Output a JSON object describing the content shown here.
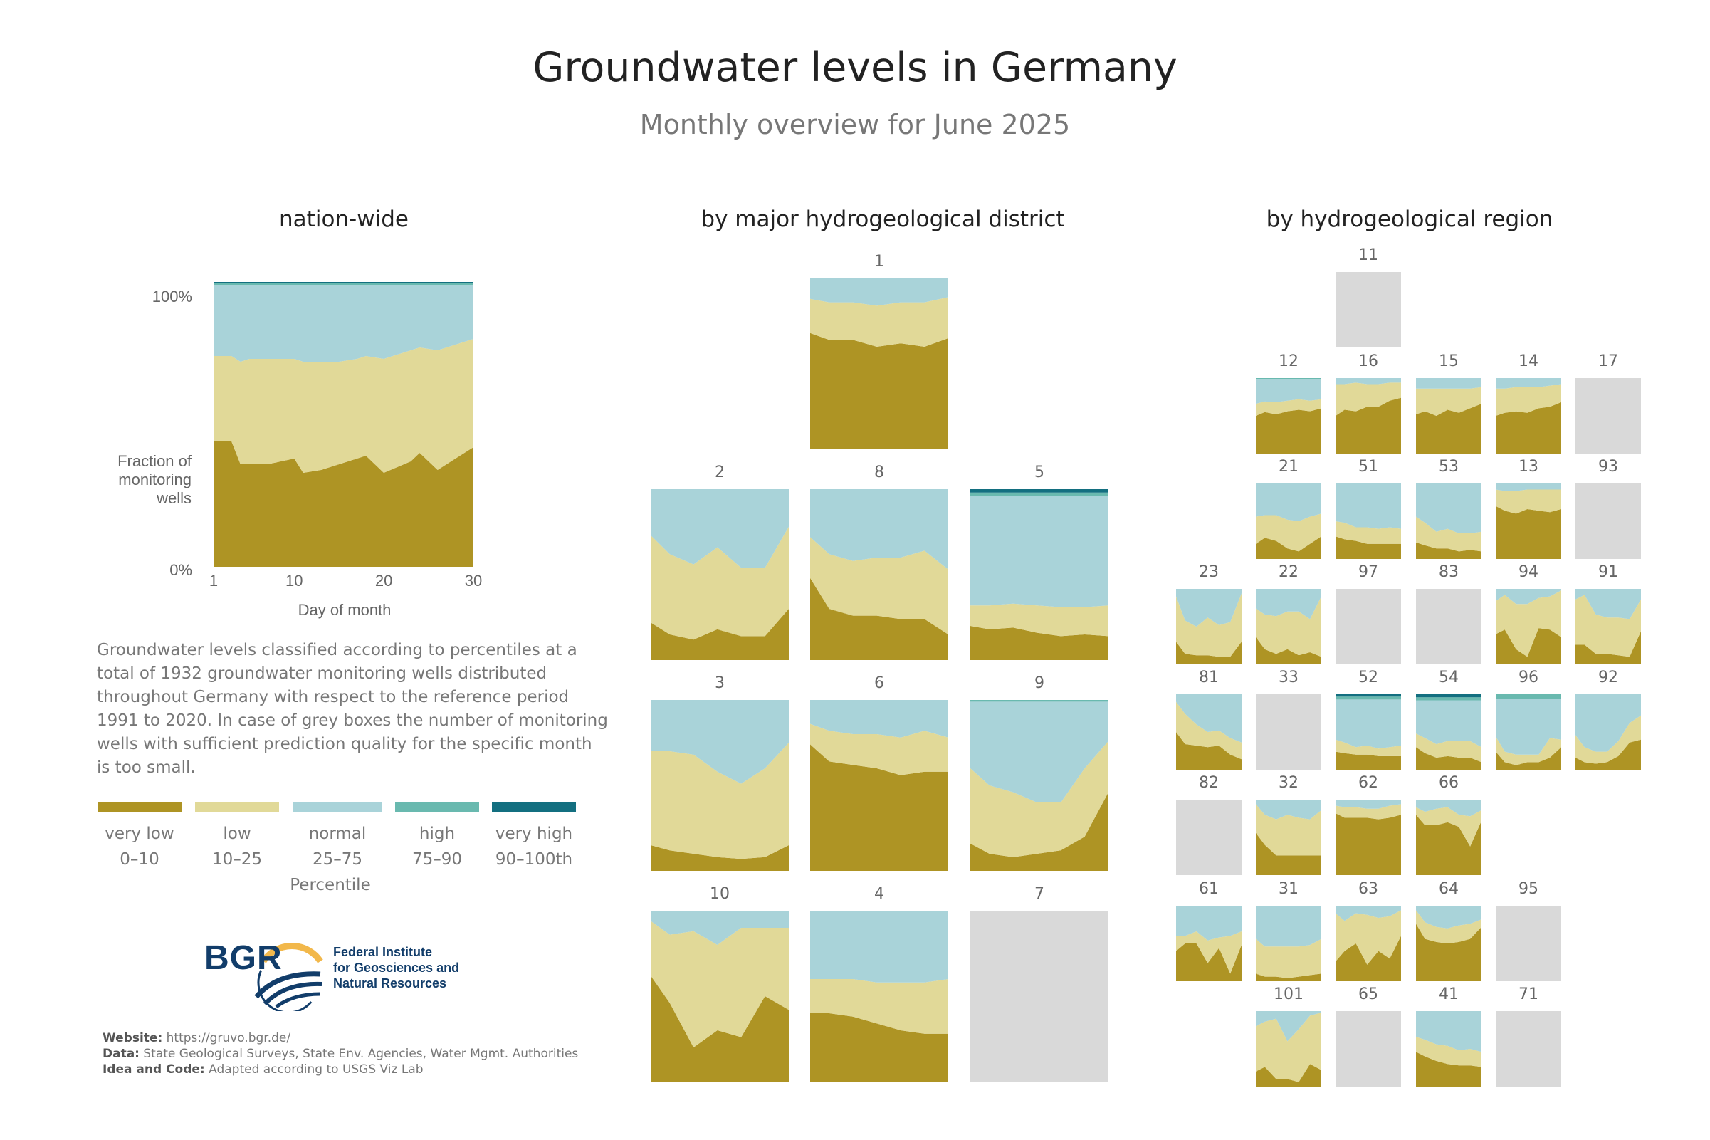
{
  "title": "Groundwater levels in Germany",
  "subtitle": "Monthly overview for June 2025",
  "sections": {
    "nation": "nation-wide",
    "district": "by major hydrogeological district",
    "region": "by hydrogeological region"
  },
  "colors": {
    "very_low": "#AE9424",
    "low": "#E1D998",
    "normal": "#A9D3D9",
    "high": "#69B9AF",
    "very_high": "#136F80",
    "grey": "#D9D9D9"
  },
  "chart_data": [
    {
      "type": "area",
      "name": "nation-wide",
      "title": "nation-wide",
      "xlabel": "Day of month",
      "ylabel": "Fraction of monitoring wells",
      "ylabel_lines": [
        "Fraction of",
        "monitoring",
        "wells"
      ],
      "x_ticks": [
        1,
        10,
        20,
        30
      ],
      "y_ticks": [
        "0%",
        "100%"
      ],
      "xlim": [
        1,
        30
      ],
      "ylim": [
        0,
        100
      ],
      "x": [
        1,
        3,
        4,
        5,
        7,
        10,
        11,
        13,
        15,
        17,
        18,
        20,
        23,
        24,
        26,
        28,
        30
      ],
      "series": [
        {
          "name": "very low 0–10",
          "values": [
            44,
            44,
            36,
            36,
            36,
            38,
            33,
            34,
            36,
            38,
            39,
            33,
            37,
            40,
            34,
            38,
            42
          ]
        },
        {
          "name": "low 10–25",
          "values": [
            30,
            30,
            36,
            37,
            37,
            35,
            39,
            38,
            36,
            35,
            35,
            40,
            39,
            37,
            42,
            40,
            38
          ]
        },
        {
          "name": "normal 25–75",
          "values": [
            25,
            25,
            27,
            26,
            26,
            26,
            27,
            27,
            27,
            26,
            25,
            26,
            23,
            22,
            23,
            21,
            19
          ]
        },
        {
          "name": "high 75–90",
          "values": [
            0.7,
            0.7,
            0.7,
            0.7,
            0.7,
            0.7,
            0.7,
            0.7,
            0.7,
            0.7,
            0.7,
            0.7,
            0.7,
            0.7,
            0.7,
            0.7,
            0.7
          ]
        },
        {
          "name": "very high 90–100th",
          "values": [
            0.3,
            0.3,
            0.3,
            0.3,
            0.3,
            0.3,
            0.3,
            0.3,
            0.3,
            0.3,
            0.3,
            0.3,
            0.3,
            0.3,
            0.3,
            0.3,
            0.3
          ]
        }
      ]
    },
    {
      "type": "area",
      "name": "by major hydrogeological district",
      "x": [
        1,
        5,
        10,
        15,
        20,
        25,
        30
      ],
      "panels": [
        {
          "id": "1",
          "vl": [
            68,
            64,
            64,
            60,
            62,
            60,
            65
          ],
          "lo": [
            20,
            22,
            22,
            24,
            24,
            26,
            24
          ],
          "hi": 0,
          "vh": 0
        },
        {
          "id": "2",
          "vl": [
            22,
            15,
            12,
            18,
            14,
            14,
            30
          ],
          "lo": [
            51,
            47,
            44,
            48,
            40,
            40,
            48
          ],
          "hi": 0,
          "vh": 0
        },
        {
          "id": "8",
          "vl": [
            48,
            30,
            26,
            26,
            24,
            24,
            15
          ],
          "lo": [
            24,
            32,
            32,
            34,
            36,
            40,
            38
          ],
          "hi": 0,
          "vh": 0
        },
        {
          "id": "5",
          "vl": [
            20,
            18,
            19,
            16,
            14,
            15,
            14
          ],
          "lo": [
            12,
            14,
            14,
            16,
            17,
            16,
            18
          ],
          "hi": 2,
          "vh": 2
        },
        {
          "id": "3",
          "vl": [
            15,
            12,
            10,
            8,
            7,
            8,
            15
          ],
          "lo": [
            55,
            58,
            58,
            50,
            44,
            52,
            60
          ],
          "hi": 0,
          "vh": 0
        },
        {
          "id": "6",
          "vl": [
            74,
            64,
            62,
            60,
            56,
            58,
            58
          ],
          "lo": [
            12,
            18,
            18,
            20,
            22,
            24,
            20
          ],
          "hi": 0,
          "vh": 0
        },
        {
          "id": "9",
          "vl": [
            16,
            10,
            8,
            10,
            12,
            20,
            46
          ],
          "lo": [
            44,
            40,
            38,
            30,
            28,
            40,
            30
          ],
          "hi": 1,
          "vh": 0
        },
        {
          "id": "10",
          "vl": [
            62,
            46,
            20,
            30,
            26,
            50,
            42
          ],
          "lo": [
            32,
            40,
            68,
            50,
            64,
            40,
            48
          ],
          "hi": 0,
          "vh": 0
        },
        {
          "id": "4",
          "vl": [
            40,
            40,
            38,
            34,
            30,
            28,
            28
          ],
          "lo": [
            20,
            20,
            22,
            24,
            28,
            30,
            32
          ],
          "hi": 0,
          "vh": 0
        },
        {
          "id": "7",
          "grey": true
        }
      ]
    },
    {
      "type": "area",
      "name": "by hydrogeological region",
      "x": [
        1,
        5,
        10,
        15,
        20,
        25,
        30
      ],
      "panels": [
        {
          "id": "11",
          "grey": true
        },
        {
          "id": "12",
          "vl": [
            50,
            55,
            52,
            56,
            58,
            56,
            60
          ],
          "lo": [
            16,
            14,
            16,
            14,
            14,
            14,
            12
          ],
          "hi": 1,
          "vh": 0
        },
        {
          "id": "16",
          "vl": [
            50,
            58,
            56,
            62,
            62,
            70,
            74
          ],
          "lo": [
            42,
            34,
            38,
            30,
            30,
            24,
            20
          ],
          "hi": 0,
          "vh": 0
        },
        {
          "id": "15",
          "vl": [
            52,
            56,
            50,
            58,
            54,
            60,
            66
          ],
          "lo": [
            34,
            30,
            36,
            28,
            32,
            26,
            22
          ],
          "hi": 0,
          "vh": 0
        },
        {
          "id": "14",
          "vl": [
            50,
            54,
            56,
            54,
            60,
            62,
            68
          ],
          "lo": [
            36,
            32,
            32,
            34,
            28,
            28,
            24
          ],
          "hi": 0,
          "vh": 0
        },
        {
          "id": "17",
          "grey": true
        },
        {
          "id": "21",
          "vl": [
            20,
            28,
            24,
            14,
            10,
            20,
            30
          ],
          "lo": [
            36,
            30,
            34,
            38,
            40,
            36,
            30
          ],
          "hi": 0,
          "vh": 0
        },
        {
          "id": "51",
          "vl": [
            30,
            26,
            24,
            20,
            20,
            20,
            20
          ],
          "lo": [
            20,
            22,
            18,
            22,
            20,
            22,
            20
          ],
          "hi": 0,
          "vh": 0
        },
        {
          "id": "53",
          "vl": [
            22,
            18,
            14,
            14,
            10,
            12,
            10
          ],
          "lo": [
            34,
            30,
            22,
            26,
            24,
            22,
            26
          ],
          "hi": 0,
          "vh": 0
        },
        {
          "id": "13",
          "vl": [
            70,
            64,
            60,
            66,
            64,
            62,
            66
          ],
          "lo": [
            22,
            26,
            30,
            26,
            28,
            30,
            26
          ],
          "hi": 0,
          "vh": 0
        },
        {
          "id": "93",
          "grey": true
        },
        {
          "id": "23",
          "vl": [
            30,
            14,
            12,
            12,
            10,
            10,
            30
          ],
          "lo": [
            60,
            44,
            38,
            50,
            42,
            46,
            64
          ],
          "hi": 0,
          "vh": 0
        },
        {
          "id": "22",
          "vl": [
            36,
            20,
            14,
            20,
            12,
            16,
            10
          ],
          "lo": [
            38,
            46,
            50,
            50,
            58,
            44,
            80
          ],
          "hi": 0,
          "vh": 0
        },
        {
          "id": "97",
          "grey": true
        },
        {
          "id": "83",
          "grey": true
        },
        {
          "id": "94",
          "vl": [
            40,
            46,
            20,
            10,
            48,
            46,
            36
          ],
          "lo": [
            44,
            46,
            60,
            70,
            40,
            44,
            62
          ],
          "hi": 0,
          "vh": 0
        },
        {
          "id": "91",
          "vl": [
            26,
            26,
            14,
            14,
            12,
            10,
            44
          ],
          "lo": [
            60,
            66,
            52,
            48,
            50,
            50,
            42
          ],
          "hi": 0,
          "vh": 0
        },
        {
          "id": "81",
          "vl": [
            50,
            34,
            32,
            30,
            32,
            20,
            14
          ],
          "lo": [
            40,
            40,
            28,
            20,
            20,
            22,
            22
          ],
          "hi": 0,
          "vh": 0
        },
        {
          "id": "33",
          "grey": true
        },
        {
          "id": "52",
          "vl": [
            24,
            22,
            20,
            20,
            18,
            18,
            18
          ],
          "lo": [
            16,
            14,
            10,
            12,
            10,
            12,
            14
          ],
          "hi": 4,
          "vh": 3
        },
        {
          "id": "54",
          "vl": [
            30,
            22,
            16,
            18,
            16,
            16,
            10
          ],
          "lo": [
            18,
            20,
            18,
            20,
            22,
            22,
            20
          ],
          "hi": 4,
          "vh": 4
        },
        {
          "id": "96",
          "vl": [
            24,
            10,
            6,
            10,
            10,
            16,
            30
          ],
          "lo": [
            20,
            14,
            14,
            10,
            10,
            26,
            10
          ],
          "hi": 6,
          "vh": 0
        },
        {
          "id": "92",
          "vl": [
            16,
            10,
            8,
            10,
            18,
            36,
            40
          ],
          "lo": [
            30,
            20,
            16,
            14,
            20,
            26,
            32
          ],
          "hi": 0,
          "vh": 0
        },
        {
          "id": "82",
          "grey": true
        },
        {
          "id": "32",
          "vl": [
            56,
            40,
            26,
            26,
            26,
            26,
            26
          ],
          "lo": [
            38,
            40,
            48,
            54,
            50,
            48,
            60
          ],
          "hi": 0,
          "vh": 0
        },
        {
          "id": "62",
          "vl": [
            82,
            76,
            76,
            76,
            74,
            76,
            80
          ],
          "lo": [
            10,
            14,
            14,
            12,
            14,
            16,
            14
          ],
          "hi": 0,
          "vh": 0
        },
        {
          "id": "66",
          "vl": [
            80,
            66,
            66,
            70,
            64,
            38,
            72
          ],
          "lo": [
            10,
            18,
            22,
            20,
            16,
            40,
            14
          ],
          "hi": 0,
          "vh": 0
        },
        {
          "id": "61",
          "vl": [
            40,
            50,
            50,
            24,
            44,
            10,
            48
          ],
          "lo": [
            20,
            10,
            16,
            30,
            14,
            50,
            18
          ],
          "hi": 0,
          "vh": 0
        },
        {
          "id": "31",
          "vl": [
            10,
            6,
            6,
            4,
            6,
            8,
            10
          ],
          "lo": [
            46,
            40,
            40,
            42,
            40,
            40,
            46
          ],
          "hi": 0,
          "vh": 0
        },
        {
          "id": "63",
          "vl": [
            26,
            40,
            50,
            22,
            40,
            30,
            60
          ],
          "lo": [
            64,
            40,
            40,
            66,
            44,
            56,
            34
          ],
          "hi": 0,
          "vh": 0
        },
        {
          "id": "64",
          "vl": [
            76,
            56,
            52,
            50,
            52,
            56,
            72
          ],
          "lo": [
            18,
            22,
            20,
            20,
            22,
            20,
            10
          ],
          "hi": 0,
          "vh": 0
        },
        {
          "id": "95",
          "grey": true
        },
        {
          "id": "101",
          "vl": [
            20,
            26,
            10,
            10,
            6,
            30,
            22
          ],
          "lo": [
            60,
            60,
            80,
            50,
            70,
            64,
            76
          ],
          "hi": 0,
          "vh": 0
        },
        {
          "id": "65",
          "grey": true
        },
        {
          "id": "41",
          "vl": [
            46,
            40,
            34,
            30,
            28,
            28,
            26
          ],
          "lo": [
            20,
            22,
            22,
            24,
            20,
            22,
            20
          ],
          "hi": 0,
          "vh": 0
        },
        {
          "id": "71",
          "grey": true
        }
      ]
    }
  ],
  "description": "Groundwater levels classified according to percentiles at a total of 1932 groundwater monitoring wells distributed throughout Germany with respect to the reference period 1991 to 2020. In case of grey boxes the number of monitoring wells with sufficient prediction quality for the specific month is too small.",
  "legend": {
    "items": [
      {
        "label": "very  low",
        "range": "0–10",
        "color": "#AE9424"
      },
      {
        "label": "low",
        "range": "10–25",
        "color": "#E1D998"
      },
      {
        "label": "normal",
        "range": "25–75",
        "color": "#A9D3D9"
      },
      {
        "label": "high",
        "range": "75–90",
        "color": "#69B9AF"
      },
      {
        "label": "very  high",
        "range": "90–100th",
        "color": "#136F80"
      }
    ],
    "axis_label": "Percentile"
  },
  "logo": {
    "acronym": "BGR",
    "line1": "Federal Institute",
    "line2": "for Geosciences and",
    "line3": "Natural Resources"
  },
  "footer": {
    "website_label": "Website:",
    "website": "https://gruvo.bgr.de/",
    "data_label": "Data:",
    "data": "State Geological Surveys, State Env.  Agencies, Water Mgmt. Authorities",
    "idea_label": "Idea and Code:",
    "idea": "Adapted according to USGS Viz Lab"
  }
}
